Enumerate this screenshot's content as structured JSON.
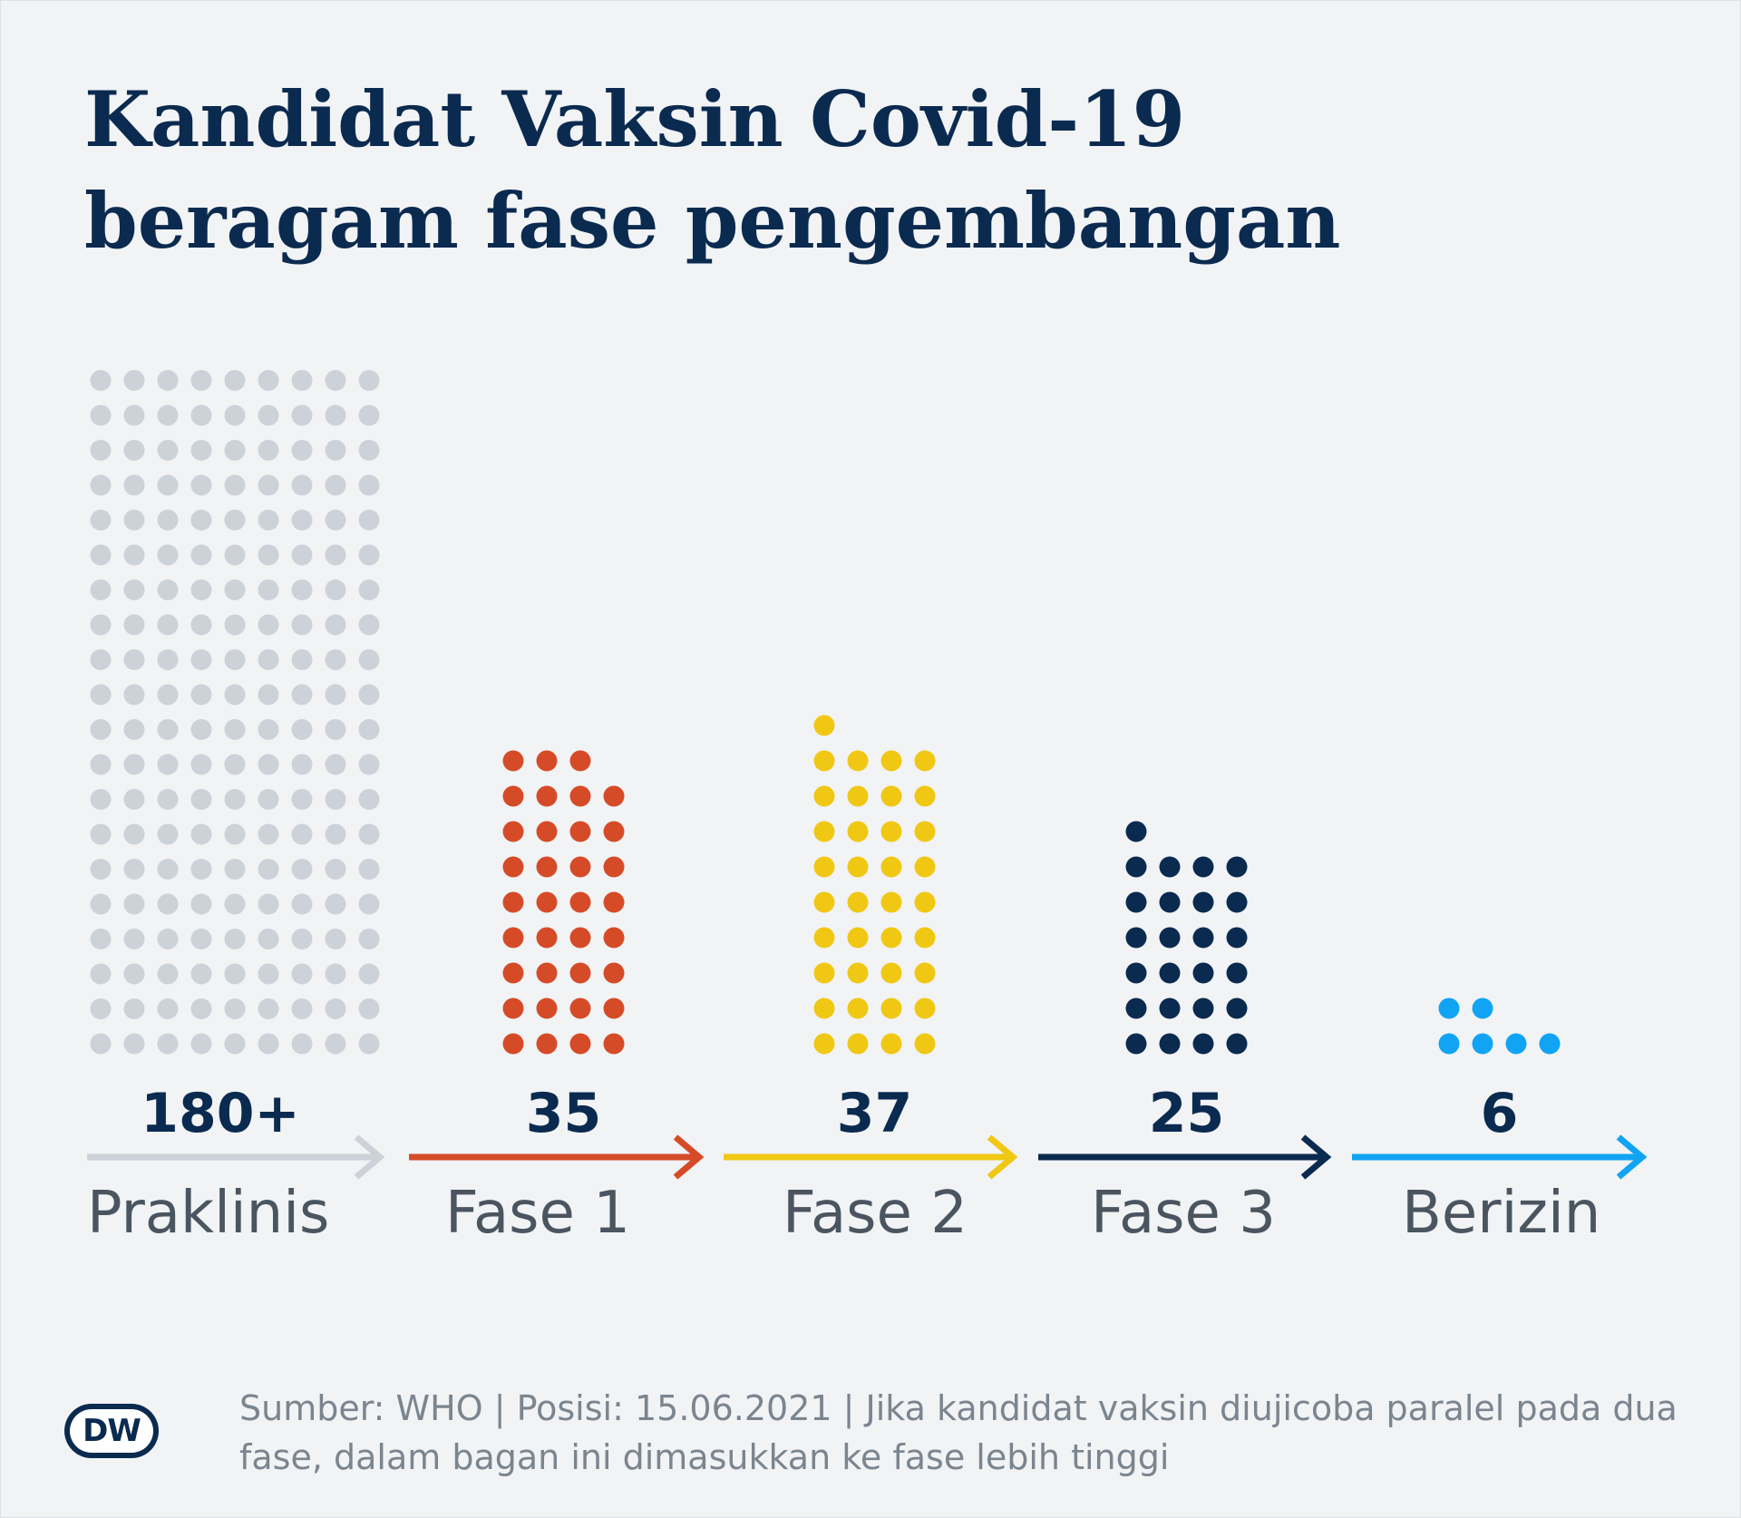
{
  "title_line1": "Kandidat Vaksin Covid-19",
  "title_line2": "beragam fase pengembangan",
  "chart_data": {
    "type": "bar",
    "categories": [
      "Praklinis",
      "Fase 1",
      "Fase 2",
      "Fase 3",
      "Berizin"
    ],
    "values": [
      180,
      35,
      37,
      25,
      6
    ],
    "value_labels": [
      "180+",
      "35",
      "37",
      "25",
      "6"
    ],
    "colors": [
      "#ccd2d8",
      "#d64b27",
      "#f0c814",
      "#0b2a4f",
      "#11a4f4"
    ],
    "dot_columns": [
      9,
      4,
      4,
      4,
      4
    ],
    "encoding": "unit dots",
    "grid": false,
    "legend": "none"
  },
  "source": "Sumber: WHO | Posisi: 15.06.2021 | Jika kandidat vaksin diujicoba paralel pada dua fase, dalam bagan ini dimasukkan ke fase lebih tinggi",
  "logo_text": "DW",
  "logo_icon": "dw-logo"
}
